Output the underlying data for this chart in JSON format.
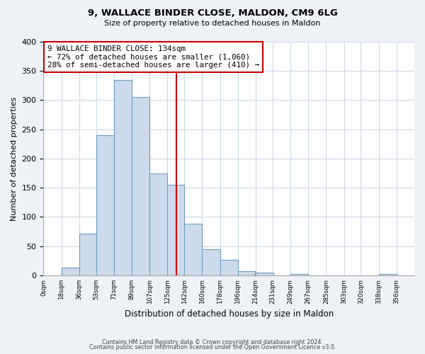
{
  "title": "9, WALLACE BINDER CLOSE, MALDON, CM9 6LG",
  "subtitle": "Size of property relative to detached houses in Maldon",
  "xlabel": "Distribution of detached houses by size in Maldon",
  "ylabel": "Number of detached properties",
  "bar_left_edges": [
    0,
    18,
    36,
    53,
    71,
    89,
    107,
    125,
    142,
    160,
    178,
    196,
    214,
    231,
    249,
    267,
    285,
    303,
    320,
    338
  ],
  "bar_heights": [
    0,
    13,
    72,
    240,
    335,
    305,
    175,
    155,
    88,
    45,
    27,
    7,
    5,
    0,
    2,
    0,
    0,
    0,
    0,
    2
  ],
  "bar_widths": [
    18,
    18,
    17,
    18,
    18,
    18,
    18,
    17,
    18,
    18,
    18,
    17,
    18,
    18,
    18,
    18,
    18,
    17,
    18,
    18
  ],
  "bar_color": "#ccdaeb",
  "bar_edge_color": "#6e9dc0",
  "vline_x": 134,
  "vline_color": "#cc0000",
  "annotation_lines": [
    "9 WALLACE BINDER CLOSE: 134sqm",
    "← 72% of detached houses are smaller (1,060)",
    "28% of semi-detached houses are larger (410) →"
  ],
  "xtick_labels": [
    "0sqm",
    "18sqm",
    "36sqm",
    "53sqm",
    "71sqm",
    "89sqm",
    "107sqm",
    "125sqm",
    "142sqm",
    "160sqm",
    "178sqm",
    "196sqm",
    "214sqm",
    "231sqm",
    "249sqm",
    "267sqm",
    "285sqm",
    "303sqm",
    "320sqm",
    "338sqm",
    "356sqm"
  ],
  "xtick_positions": [
    0,
    18,
    36,
    53,
    71,
    89,
    107,
    125,
    142,
    160,
    178,
    196,
    214,
    231,
    249,
    267,
    285,
    303,
    320,
    338,
    356
  ],
  "ylim": [
    0,
    400
  ],
  "xlim": [
    0,
    374
  ],
  "yticks": [
    0,
    50,
    100,
    150,
    200,
    250,
    300,
    350,
    400
  ],
  "footer_line1": "Contains HM Land Registry data © Crown copyright and database right 2024.",
  "footer_line2": "Contains public sector information licensed under the Open Government Licence v3.0.",
  "bg_color": "#eef2f7",
  "plot_bg_color": "#ffffff",
  "grid_color": "#ccd8e8"
}
